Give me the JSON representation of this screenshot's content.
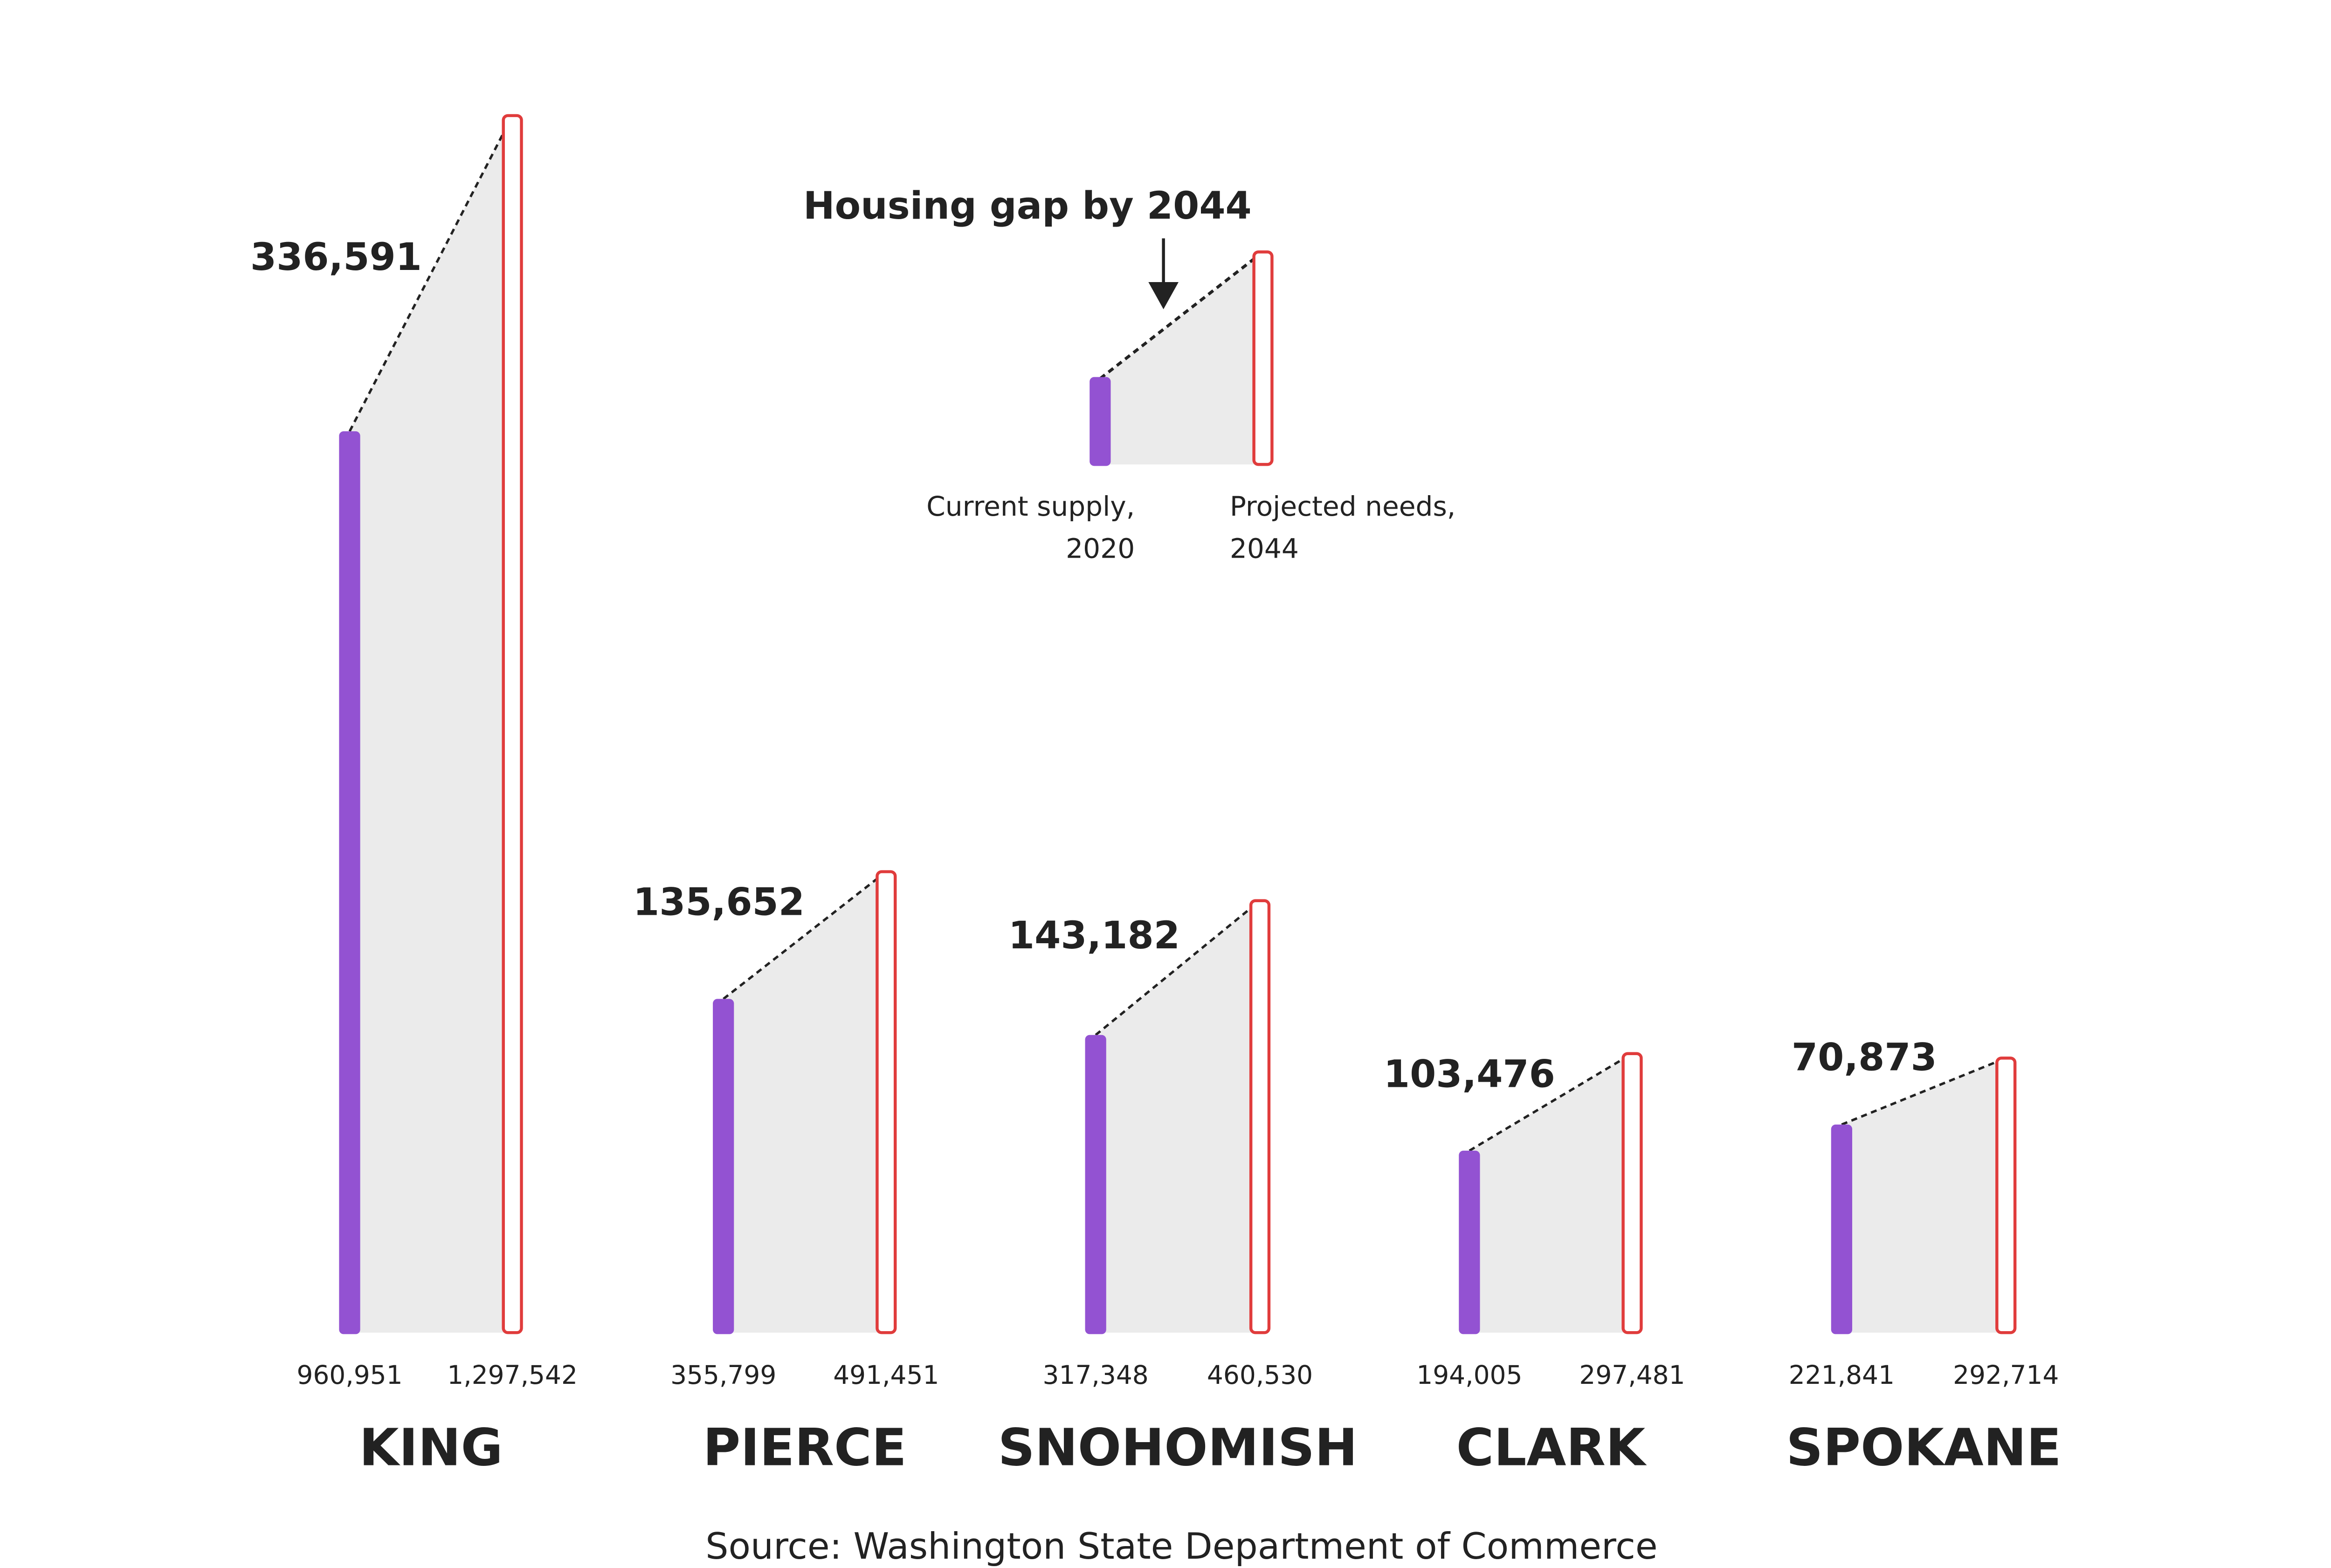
{
  "chart_data": {
    "type": "bar",
    "categories": [
      "KING",
      "PIERCE",
      "SNOHOMISH",
      "CLARK",
      "SPOKANE"
    ],
    "series": [
      {
        "name": "Current supply, 2020",
        "values": [
          960951,
          355799,
          317348,
          194005,
          221841
        ]
      },
      {
        "name": "Projected needs, 2044",
        "values": [
          1297542,
          491451,
          460530,
          297481,
          292714
        ]
      }
    ],
    "gaps": [
      336591,
      135652,
      143182,
      103476,
      70873
    ],
    "labels": {
      "supply": [
        "960,951",
        "355,799",
        "317,348",
        "194,005",
        "221,841"
      ],
      "needs": [
        "1,297,542",
        "491,451",
        "460,530",
        "297,481",
        "292,714"
      ],
      "gaps": [
        "336,591",
        "135,652",
        "143,182",
        "103,476",
        "70,873"
      ]
    },
    "legend": {
      "title": "Housing gap by 2044",
      "supply_line1": "Current supply,",
      "supply_line2": "2020",
      "needs_line1": "Projected needs,",
      "needs_line2": "2044",
      "placement": "top-center"
    },
    "source": "Source: Washington State Department of Commerce",
    "colors": {
      "supply": "#9352d2",
      "needs": "#e03c3c",
      "gap_fill": "#ebebeb",
      "text": "#222222"
    },
    "grid": false
  }
}
